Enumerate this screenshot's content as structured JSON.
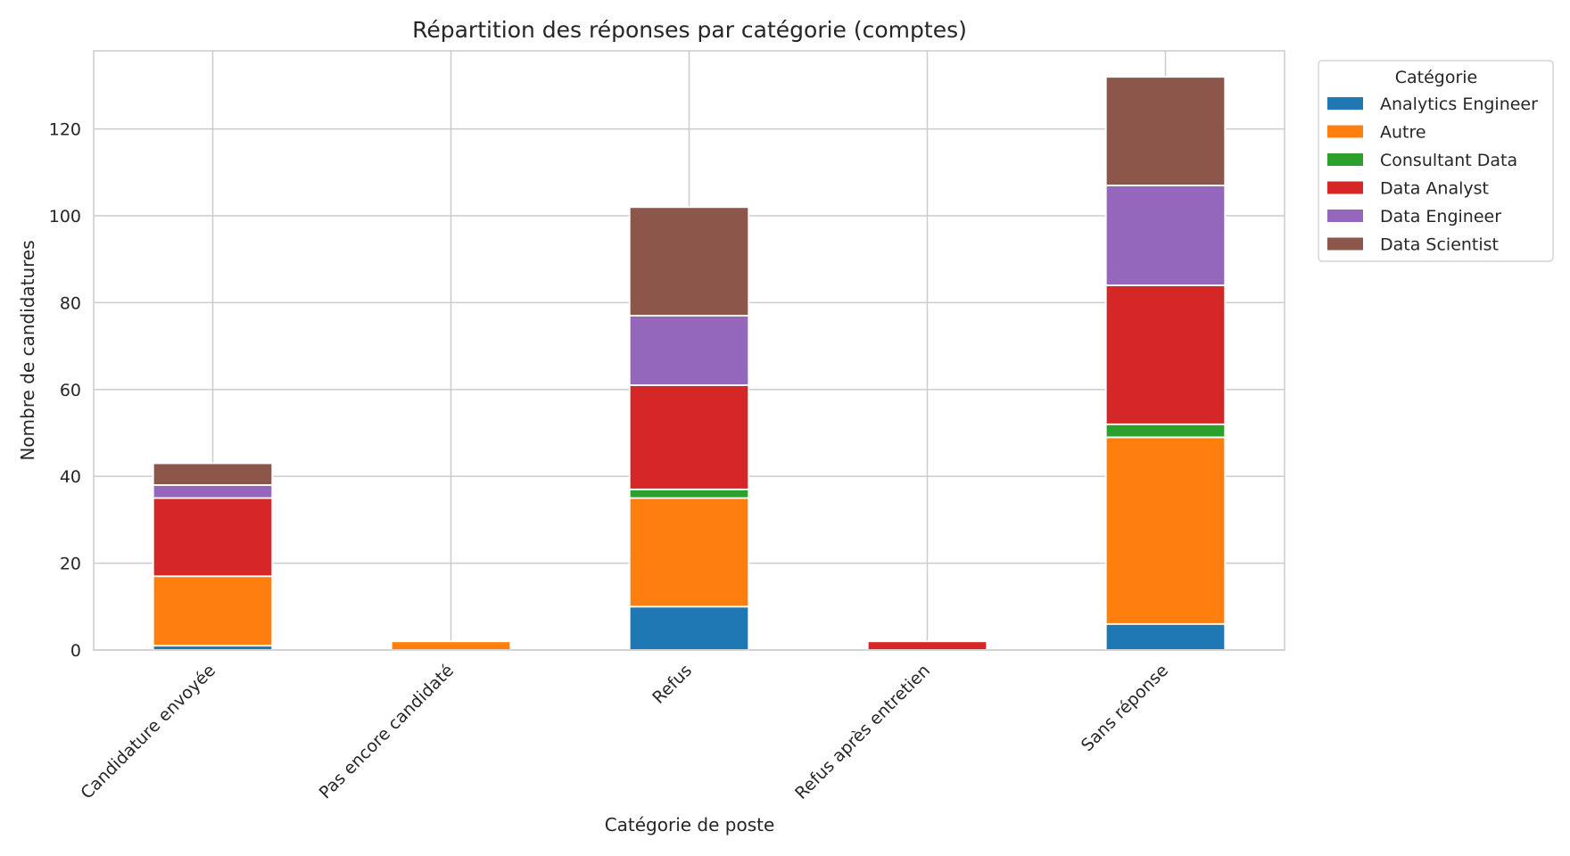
{
  "chart_data": {
    "type": "bar",
    "stacked": true,
    "title": "Répartition des réponses par catégorie (comptes)",
    "xlabel": "Catégorie de poste",
    "ylabel": "Nombre de candidatures",
    "ylim": [
      0,
      138
    ],
    "yticks": [
      0,
      20,
      40,
      60,
      80,
      100,
      120
    ],
    "grid": true,
    "legend_title": "Catégorie",
    "legend_position": "outside-top-right",
    "categories": [
      "Candidature envoyée",
      "Pas encore candidaté",
      "Refus",
      "Refus après entretien",
      "Sans réponse"
    ],
    "series": [
      {
        "name": "Analytics Engineer",
        "color": "#1f77b4",
        "values": [
          1,
          0,
          10,
          0,
          6
        ]
      },
      {
        "name": "Autre",
        "color": "#ff7f0e",
        "values": [
          16,
          2,
          25,
          0,
          43
        ]
      },
      {
        "name": "Consultant Data",
        "color": "#2ca02c",
        "values": [
          0,
          0,
          2,
          0,
          3
        ]
      },
      {
        "name": "Data Analyst",
        "color": "#d62728",
        "values": [
          18,
          0,
          24,
          2,
          32
        ]
      },
      {
        "name": "Data Engineer",
        "color": "#9467bd",
        "values": [
          3,
          0,
          16,
          0,
          23
        ]
      },
      {
        "name": "Data Scientist",
        "color": "#8c564b",
        "values": [
          5,
          0,
          25,
          0,
          25
        ]
      }
    ]
  }
}
